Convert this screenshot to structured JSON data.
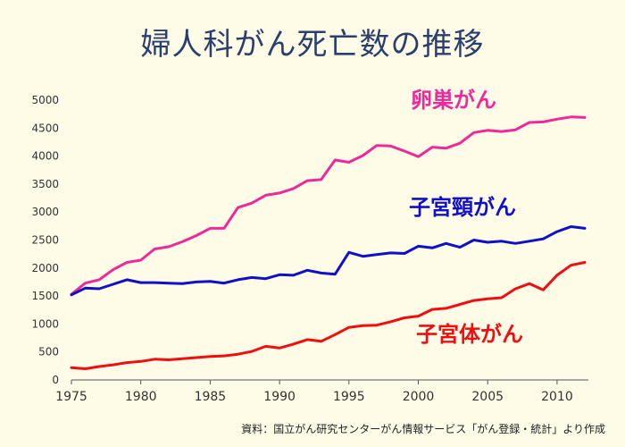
{
  "title": "婦人科がん死亡数の推移",
  "source": "資料：国立がん研究センターがん情報サービス「がん登録・統計」より作成",
  "chart_data": {
    "type": "line",
    "xlim": [
      1975,
      2012
    ],
    "ylim": [
      0,
      5000
    ],
    "x_ticks": [
      1975,
      1980,
      1985,
      1990,
      1995,
      2000,
      2005,
      2010
    ],
    "y_ticks": [
      0,
      500,
      1000,
      1500,
      2000,
      2500,
      3000,
      3500,
      4000,
      4500,
      5000
    ],
    "grid": false,
    "x": [
      1975,
      1976,
      1977,
      1978,
      1979,
      1980,
      1981,
      1982,
      1983,
      1984,
      1985,
      1986,
      1987,
      1988,
      1989,
      1990,
      1991,
      1992,
      1993,
      1994,
      1995,
      1996,
      1997,
      1998,
      1999,
      2000,
      2001,
      2002,
      2003,
      2004,
      2005,
      2006,
      2007,
      2008,
      2009,
      2010,
      2011,
      2012
    ],
    "series": [
      {
        "name": "卵巣がん",
        "color": "#ee2a9b",
        "values": [
          1530,
          1730,
          1790,
          1970,
          2100,
          2140,
          2340,
          2380,
          2470,
          2580,
          2710,
          2710,
          3080,
          3160,
          3300,
          3340,
          3420,
          3560,
          3580,
          3930,
          3890,
          4010,
          4190,
          4180,
          4090,
          3990,
          4160,
          4140,
          4230,
          4420,
          4460,
          4440,
          4470,
          4600,
          4610,
          4660,
          4700,
          4690
        ]
      },
      {
        "name": "子宮頸がん",
        "color": "#1010c8",
        "values": [
          1520,
          1640,
          1630,
          1710,
          1790,
          1740,
          1740,
          1730,
          1720,
          1750,
          1760,
          1730,
          1790,
          1830,
          1810,
          1880,
          1870,
          1960,
          1910,
          1890,
          2280,
          2210,
          2240,
          2270,
          2260,
          2390,
          2360,
          2440,
          2370,
          2500,
          2460,
          2480,
          2440,
          2480,
          2520,
          2650,
          2740,
          2710
        ]
      },
      {
        "name": "子宮体がん",
        "color": "#ee1010",
        "values": [
          220,
          200,
          240,
          270,
          310,
          330,
          370,
          360,
          380,
          400,
          420,
          430,
          460,
          510,
          600,
          570,
          640,
          720,
          690,
          810,
          940,
          970,
          980,
          1040,
          1110,
          1140,
          1260,
          1280,
          1350,
          1420,
          1450,
          1470,
          1630,
          1720,
          1610,
          1870,
          2050,
          2100
        ]
      }
    ]
  }
}
